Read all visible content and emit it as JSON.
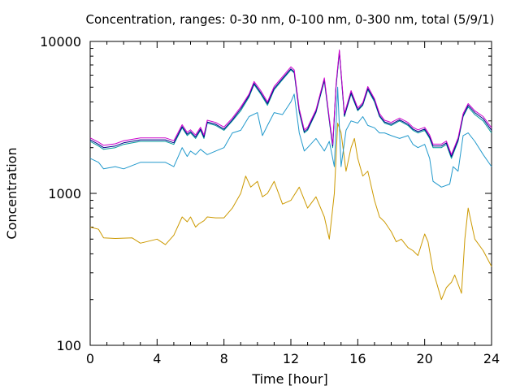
{
  "chart_data": {
    "type": "line",
    "title": "Concentration, ranges: 0-30 nm, 0-100 nm, 0-300 nm, total (5/9/1)",
    "xlabel": "Time [hour]",
    "ylabel": "Concentration",
    "xlim": [
      0,
      24
    ],
    "ylim": [
      100,
      10000
    ],
    "y_scale": "log",
    "grid": false,
    "legend": "none",
    "x_ticks": [
      "0",
      "4",
      "8",
      "12",
      "16",
      "20",
      "24"
    ],
    "y_ticks": [
      "100",
      "1000",
      "10000"
    ],
    "series": [
      {
        "color": "#cc9900",
        "points": [
          [
            0,
            600
          ],
          [
            0.5,
            580
          ],
          [
            0.8,
            510
          ],
          [
            1.5,
            505
          ],
          [
            2.5,
            510
          ],
          [
            3,
            470
          ],
          [
            4,
            500
          ],
          [
            4.5,
            460
          ],
          [
            5,
            530
          ],
          [
            5.5,
            700
          ],
          [
            5.8,
            650
          ],
          [
            6,
            700
          ],
          [
            6.3,
            600
          ],
          [
            6.5,
            630
          ],
          [
            6.8,
            660
          ],
          [
            7,
            700
          ],
          [
            7.5,
            690
          ],
          [
            8,
            690
          ],
          [
            8.5,
            800
          ],
          [
            9,
            1000
          ],
          [
            9.3,
            1300
          ],
          [
            9.6,
            1100
          ],
          [
            10,
            1200
          ],
          [
            10.3,
            950
          ],
          [
            10.6,
            1000
          ],
          [
            11,
            1200
          ],
          [
            11.5,
            850
          ],
          [
            12,
            900
          ],
          [
            12.5,
            1100
          ],
          [
            13,
            800
          ],
          [
            13.5,
            950
          ],
          [
            14,
            700
          ],
          [
            14.3,
            500
          ],
          [
            14.6,
            1000
          ],
          [
            14.8,
            2900
          ],
          [
            15,
            2500
          ],
          [
            15.3,
            1400
          ],
          [
            15.6,
            2000
          ],
          [
            15.8,
            2300
          ],
          [
            16,
            1700
          ],
          [
            16.3,
            1300
          ],
          [
            16.6,
            1400
          ],
          [
            17,
            900
          ],
          [
            17.3,
            700
          ],
          [
            17.6,
            650
          ],
          [
            18,
            560
          ],
          [
            18.3,
            480
          ],
          [
            18.6,
            500
          ],
          [
            19,
            440
          ],
          [
            19.3,
            420
          ],
          [
            19.6,
            390
          ],
          [
            20,
            540
          ],
          [
            20.2,
            480
          ],
          [
            20.5,
            310
          ],
          [
            21,
            200
          ],
          [
            21.3,
            240
          ],
          [
            21.6,
            260
          ],
          [
            21.8,
            290
          ],
          [
            22.2,
            220
          ],
          [
            22.4,
            500
          ],
          [
            22.6,
            800
          ],
          [
            23,
            500
          ],
          [
            23.5,
            420
          ],
          [
            24,
            330
          ]
        ]
      },
      {
        "color": "#2299cc",
        "points": [
          [
            0,
            1700
          ],
          [
            0.5,
            1600
          ],
          [
            0.8,
            1450
          ],
          [
            1.5,
            1500
          ],
          [
            2,
            1450
          ],
          [
            3,
            1600
          ],
          [
            4,
            1600
          ],
          [
            4.5,
            1600
          ],
          [
            5,
            1500
          ],
          [
            5.5,
            2000
          ],
          [
            5.8,
            1750
          ],
          [
            6,
            1900
          ],
          [
            6.3,
            1800
          ],
          [
            6.6,
            1950
          ],
          [
            7,
            1800
          ],
          [
            7.5,
            1900
          ],
          [
            8,
            2000
          ],
          [
            8.5,
            2500
          ],
          [
            9,
            2600
          ],
          [
            9.5,
            3200
          ],
          [
            10,
            3400
          ],
          [
            10.3,
            2400
          ],
          [
            10.6,
            2800
          ],
          [
            11,
            3400
          ],
          [
            11.5,
            3300
          ],
          [
            12,
            4000
          ],
          [
            12.2,
            4500
          ],
          [
            12.5,
            2500
          ],
          [
            12.8,
            1900
          ],
          [
            13,
            2000
          ],
          [
            13.5,
            2300
          ],
          [
            14,
            1900
          ],
          [
            14.3,
            2200
          ],
          [
            14.6,
            1500
          ],
          [
            14.8,
            5000
          ],
          [
            15,
            1500
          ],
          [
            15.3,
            2600
          ],
          [
            15.6,
            3000
          ],
          [
            16,
            2900
          ],
          [
            16.3,
            3200
          ],
          [
            16.6,
            2800
          ],
          [
            17,
            2700
          ],
          [
            17.3,
            2500
          ],
          [
            17.6,
            2500
          ],
          [
            18,
            2400
          ],
          [
            18.5,
            2300
          ],
          [
            19,
            2400
          ],
          [
            19.3,
            2100
          ],
          [
            19.6,
            2000
          ],
          [
            20,
            2100
          ],
          [
            20.3,
            1700
          ],
          [
            20.5,
            1200
          ],
          [
            21,
            1100
          ],
          [
            21.5,
            1150
          ],
          [
            21.7,
            1500
          ],
          [
            22,
            1400
          ],
          [
            22.3,
            2400
          ],
          [
            22.6,
            2500
          ],
          [
            23,
            2200
          ],
          [
            23.5,
            1800
          ],
          [
            24,
            1500
          ]
        ]
      },
      {
        "color": "#009999",
        "points": [
          [
            0,
            2200
          ],
          [
            0.5,
            2050
          ],
          [
            0.8,
            1950
          ],
          [
            1.5,
            2000
          ],
          [
            2,
            2100
          ],
          [
            3,
            2200
          ],
          [
            4,
            2200
          ],
          [
            4.5,
            2200
          ],
          [
            5,
            2100
          ],
          [
            5.5,
            2700
          ],
          [
            5.8,
            2400
          ],
          [
            6,
            2500
          ],
          [
            6.3,
            2300
          ],
          [
            6.6,
            2600
          ],
          [
            6.8,
            2300
          ],
          [
            7,
            2900
          ],
          [
            7.5,
            2800
          ],
          [
            8,
            2600
          ],
          [
            8.5,
            3000
          ],
          [
            9,
            3500
          ],
          [
            9.5,
            4300
          ],
          [
            9.8,
            5200
          ],
          [
            10.2,
            4500
          ],
          [
            10.6,
            3800
          ],
          [
            11,
            4800
          ],
          [
            11.5,
            5600
          ],
          [
            12,
            6500
          ],
          [
            12.2,
            6200
          ],
          [
            12.5,
            3400
          ],
          [
            12.8,
            2500
          ],
          [
            13,
            2600
          ],
          [
            13.5,
            3400
          ],
          [
            14,
            5500
          ],
          [
            14.3,
            3000
          ],
          [
            14.5,
            2000
          ],
          [
            14.7,
            5000
          ],
          [
            14.9,
            8500
          ],
          [
            15.2,
            3200
          ],
          [
            15.6,
            4500
          ],
          [
            16,
            3500
          ],
          [
            16.3,
            3800
          ],
          [
            16.6,
            4800
          ],
          [
            17,
            4000
          ],
          [
            17.3,
            3200
          ],
          [
            17.6,
            2900
          ],
          [
            18,
            2800
          ],
          [
            18.5,
            3000
          ],
          [
            19,
            2800
          ],
          [
            19.3,
            2600
          ],
          [
            19.6,
            2500
          ],
          [
            20,
            2600
          ],
          [
            20.3,
            2300
          ],
          [
            20.5,
            2000
          ],
          [
            21,
            2000
          ],
          [
            21.3,
            2100
          ],
          [
            21.6,
            1700
          ],
          [
            22,
            2200
          ],
          [
            22.3,
            3200
          ],
          [
            22.6,
            3700
          ],
          [
            23,
            3300
          ],
          [
            23.5,
            3000
          ],
          [
            24,
            2500
          ]
        ]
      },
      {
        "color": "#000088",
        "points": [
          [
            0,
            2250
          ],
          [
            0.5,
            2100
          ],
          [
            0.8,
            2000
          ],
          [
            1.5,
            2050
          ],
          [
            2,
            2150
          ],
          [
            3,
            2250
          ],
          [
            4,
            2250
          ],
          [
            4.5,
            2250
          ],
          [
            5,
            2150
          ],
          [
            5.5,
            2750
          ],
          [
            5.8,
            2450
          ],
          [
            6,
            2550
          ],
          [
            6.3,
            2350
          ],
          [
            6.6,
            2650
          ],
          [
            6.8,
            2350
          ],
          [
            7,
            2950
          ],
          [
            7.5,
            2850
          ],
          [
            8,
            2650
          ],
          [
            8.5,
            3050
          ],
          [
            9,
            3600
          ],
          [
            9.5,
            4400
          ],
          [
            9.8,
            5300
          ],
          [
            10.2,
            4600
          ],
          [
            10.6,
            3900
          ],
          [
            11,
            4900
          ],
          [
            11.5,
            5700
          ],
          [
            12,
            6600
          ],
          [
            12.2,
            6300
          ],
          [
            12.5,
            3500
          ],
          [
            12.8,
            2550
          ],
          [
            13,
            2650
          ],
          [
            13.5,
            3450
          ],
          [
            14,
            5600
          ],
          [
            14.3,
            3050
          ],
          [
            14.5,
            2050
          ],
          [
            14.7,
            5100
          ],
          [
            14.9,
            8600
          ],
          [
            15.2,
            3250
          ],
          [
            15.6,
            4600
          ],
          [
            16,
            3550
          ],
          [
            16.3,
            3850
          ],
          [
            16.6,
            4900
          ],
          [
            17,
            4100
          ],
          [
            17.3,
            3250
          ],
          [
            17.6,
            2950
          ],
          [
            18,
            2850
          ],
          [
            18.5,
            3050
          ],
          [
            19,
            2850
          ],
          [
            19.3,
            2650
          ],
          [
            19.6,
            2550
          ],
          [
            20,
            2650
          ],
          [
            20.3,
            2350
          ],
          [
            20.5,
            2050
          ],
          [
            21,
            2050
          ],
          [
            21.3,
            2150
          ],
          [
            21.6,
            1750
          ],
          [
            22,
            2250
          ],
          [
            22.3,
            3250
          ],
          [
            22.6,
            3800
          ],
          [
            23,
            3400
          ],
          [
            23.5,
            3100
          ],
          [
            24,
            2600
          ]
        ]
      },
      {
        "color": "#cc00cc",
        "points": [
          [
            0,
            2320
          ],
          [
            0.5,
            2170
          ],
          [
            0.8,
            2070
          ],
          [
            1.5,
            2120
          ],
          [
            2,
            2220
          ],
          [
            3,
            2320
          ],
          [
            4,
            2320
          ],
          [
            4.5,
            2320
          ],
          [
            5,
            2220
          ],
          [
            5.5,
            2830
          ],
          [
            5.8,
            2520
          ],
          [
            6,
            2620
          ],
          [
            6.3,
            2420
          ],
          [
            6.6,
            2720
          ],
          [
            6.8,
            2420
          ],
          [
            7,
            3030
          ],
          [
            7.5,
            2930
          ],
          [
            8,
            2730
          ],
          [
            8.5,
            3130
          ],
          [
            9,
            3700
          ],
          [
            9.5,
            4500
          ],
          [
            9.8,
            5450
          ],
          [
            10.2,
            4750
          ],
          [
            10.6,
            4000
          ],
          [
            11,
            5050
          ],
          [
            11.5,
            5850
          ],
          [
            12,
            6800
          ],
          [
            12.2,
            6500
          ],
          [
            12.5,
            3600
          ],
          [
            12.8,
            2620
          ],
          [
            13,
            2720
          ],
          [
            13.5,
            3550
          ],
          [
            14,
            5750
          ],
          [
            14.3,
            3130
          ],
          [
            14.5,
            2100
          ],
          [
            14.7,
            5250
          ],
          [
            14.9,
            8800
          ],
          [
            15.2,
            3350
          ],
          [
            15.6,
            4750
          ],
          [
            16,
            3650
          ],
          [
            16.3,
            3950
          ],
          [
            16.6,
            5050
          ],
          [
            17,
            4200
          ],
          [
            17.3,
            3350
          ],
          [
            17.6,
            3030
          ],
          [
            18,
            2930
          ],
          [
            18.5,
            3130
          ],
          [
            19,
            2930
          ],
          [
            19.3,
            2720
          ],
          [
            19.6,
            2620
          ],
          [
            20,
            2720
          ],
          [
            20.3,
            2420
          ],
          [
            20.5,
            2110
          ],
          [
            21,
            2110
          ],
          [
            21.3,
            2210
          ],
          [
            21.6,
            1800
          ],
          [
            22,
            2320
          ],
          [
            22.3,
            3350
          ],
          [
            22.6,
            3900
          ],
          [
            23,
            3500
          ],
          [
            23.5,
            3200
          ],
          [
            24,
            2700
          ]
        ]
      }
    ]
  }
}
